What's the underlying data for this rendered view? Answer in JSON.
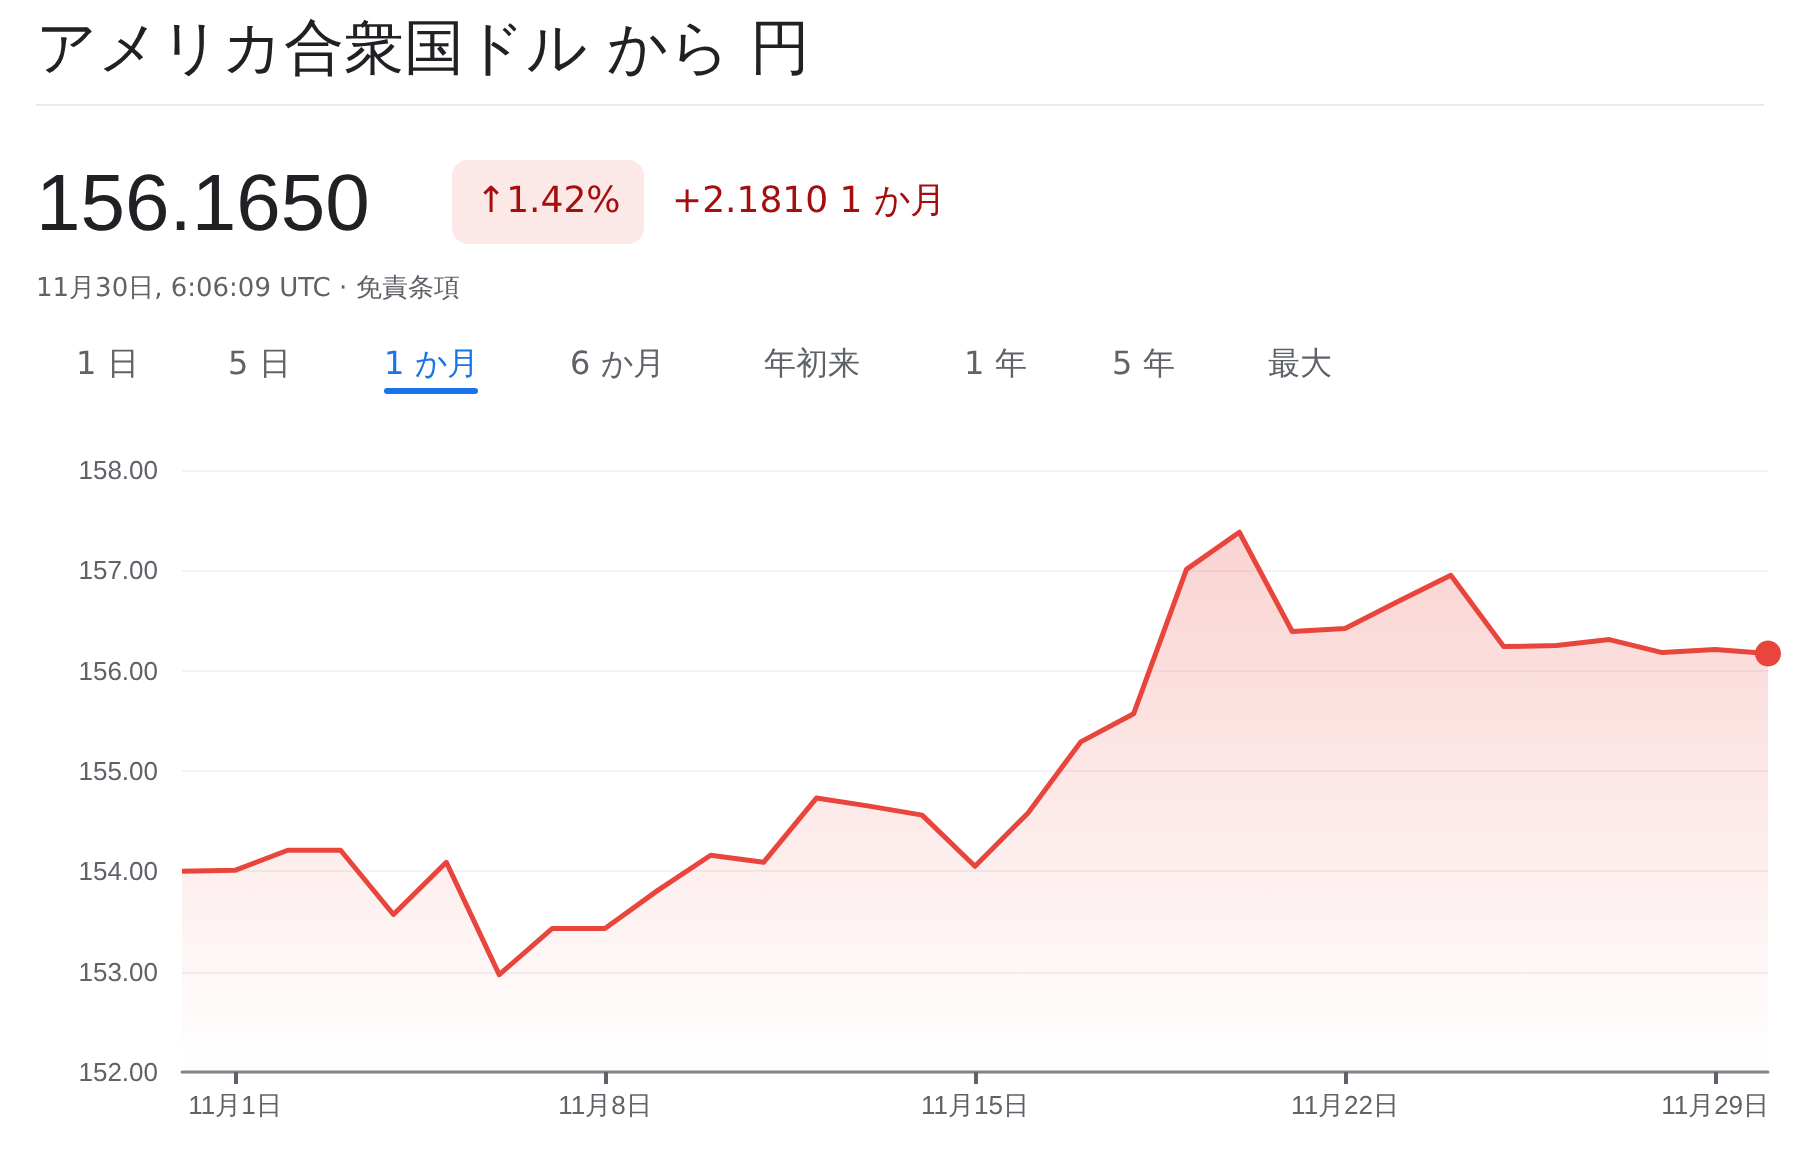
{
  "chart_data": {
    "type": "area",
    "title": "アメリカ合衆国ドル から 円",
    "annotations": [
      "156.1650",
      "↑1.42%",
      "+2.1810 1 か月",
      "11月30日, 6:06:09 UTC · 免責条項",
      "1 日",
      "5 日",
      "1 か月",
      "6 か月",
      "年初来",
      "1 年",
      "5 年",
      "最大"
    ],
    "x": [
      "--10-31",
      "--11-01",
      "--11-02",
      "--11-03",
      "--11-04",
      "--11-05",
      "--11-06",
      "--11-07",
      "--11-08",
      "--11-09",
      "--11-10",
      "--11-11",
      "--11-12",
      "--11-13",
      "--11-14",
      "--11-15",
      "--11-16",
      "--11-17",
      "--11-18",
      "--11-19",
      "--11-20",
      "--11-21",
      "--11-22",
      "--11-23",
      "--11-24",
      "--11-25",
      "--11-26",
      "--11-27",
      "--11-28",
      "--11-29",
      "--11-30"
    ],
    "series": [
      {
        "color": "#e8453c",
        "values": [
          154.0,
          154.01,
          154.21,
          154.21,
          153.57,
          154.09,
          152.97,
          153.43,
          153.43,
          153.81,
          154.16,
          154.09,
          154.73,
          154.65,
          154.56,
          154.05,
          154.58,
          155.29,
          155.57,
          157.01,
          157.38,
          156.39,
          156.42,
          156.69,
          156.95,
          156.24,
          156.25,
          156.31,
          156.18,
          156.21,
          156.17
        ]
      }
    ],
    "xlim": [
      "--10-31",
      "--11-30"
    ],
    "xticks": [
      {
        "value": "--11-01",
        "label": "11月1日"
      },
      {
        "value": "--11-08",
        "label": "11月8日"
      },
      {
        "value": "--11-15",
        "label": "11月15日"
      },
      {
        "value": "--11-22",
        "label": "11月22日"
      },
      {
        "value": "--11-29",
        "label": "11月29日"
      }
    ],
    "ylim": [
      152,
      158
    ],
    "yticks": [
      {
        "value": 152,
        "label": "152.00"
      },
      {
        "value": 153,
        "label": "153.00"
      },
      {
        "value": 154,
        "label": "154.00"
      },
      {
        "value": 155,
        "label": "155.00"
      },
      {
        "value": 156,
        "label": "156.00"
      },
      {
        "value": 157,
        "label": "157.00"
      },
      {
        "value": 158,
        "label": "158.00"
      }
    ],
    "grid": "y"
  }
}
